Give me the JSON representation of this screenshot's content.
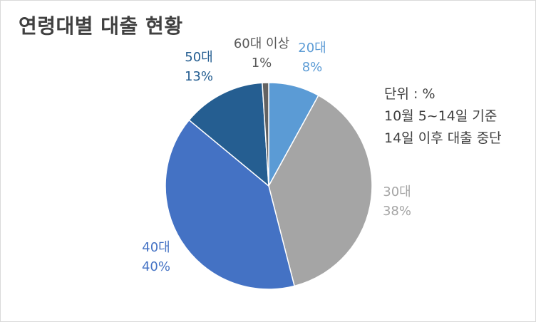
{
  "chart_data": {
    "type": "pie",
    "title": "연령대별 대출 현황",
    "slices": [
      {
        "label": "20대",
        "value": 8,
        "value_label": "8%",
        "color": "#5b9bd5"
      },
      {
        "label": "30대",
        "value": 38,
        "value_label": "38%",
        "color": "#a5a5a5"
      },
      {
        "label": "40대",
        "value": 40,
        "value_label": "40%",
        "color": "#4472c4"
      },
      {
        "label": "50대",
        "value": 13,
        "value_label": "13%",
        "color": "#255e91"
      },
      {
        "label": "60대 이상",
        "value": 1,
        "value_label": "1%",
        "color": "#636363"
      }
    ],
    "notes": [
      "단위 : %",
      "10월 5~14일 기준",
      "14일 이후 대출 중단"
    ]
  }
}
